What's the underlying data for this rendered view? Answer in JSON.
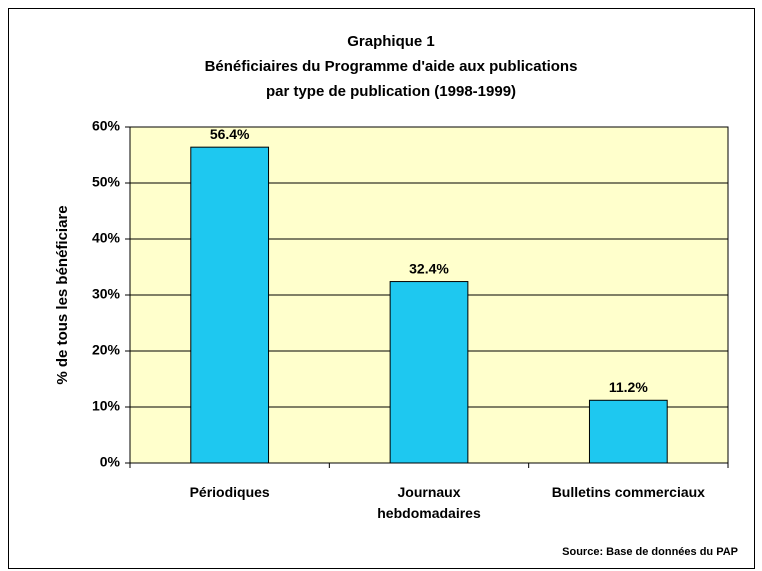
{
  "chart_data": {
    "type": "bar",
    "title": [
      "Graphique 1",
      "Bénéficiaires du Programme d'aide aux publications",
      "par type de publication (1998-1999)"
    ],
    "y_label": "% de tous les bénéficiare",
    "categories": [
      "Périodiques",
      "Journaux hebdomadaires",
      "Bulletins commerciaux"
    ],
    "values": [
      56.4,
      32.4,
      11.2
    ],
    "value_labels": [
      "56.4%",
      "32.4%",
      "11.2%"
    ],
    "color": "#1ec8f0",
    "plot_background": "#ffffcc",
    "ylim": [
      0,
      60
    ],
    "yticks": [
      {
        "value": 0,
        "label": "0%"
      },
      {
        "value": 10,
        "label": "10%"
      },
      {
        "value": 20,
        "label": "20%"
      },
      {
        "value": 30,
        "label": "30%"
      },
      {
        "value": 40,
        "label": "40%"
      },
      {
        "value": 50,
        "label": "50%"
      },
      {
        "value": 60,
        "label": "60%"
      }
    ],
    "grid": true,
    "source": "Source: Base de données du PAP"
  }
}
